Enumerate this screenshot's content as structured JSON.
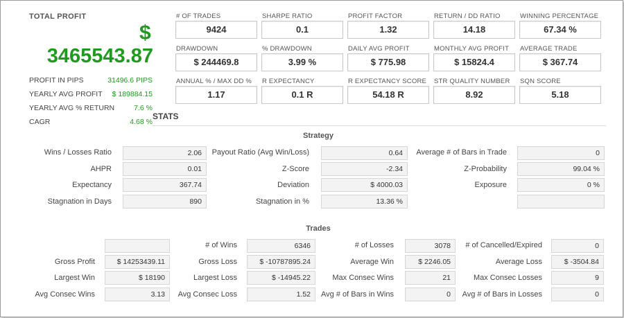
{
  "total_profit": {
    "title": "TOTAL PROFIT",
    "currency": "$",
    "value": "3465543.87",
    "side": [
      {
        "label": "PROFIT IN PIPS",
        "value": "31496.6 PIPS"
      },
      {
        "label": "YEARLY AVG PROFIT",
        "value": "$ 189884.15"
      },
      {
        "label": "YEARLY AVG % RETURN",
        "value": "7.6 %"
      },
      {
        "label": "CAGR",
        "value": "4.68 %"
      }
    ]
  },
  "metrics": [
    {
      "label": "# OF TRADES",
      "value": "9424"
    },
    {
      "label": "SHARPE RATIO",
      "value": "0.1"
    },
    {
      "label": "PROFIT FACTOR",
      "value": "1.32"
    },
    {
      "label": "RETURN / DD RATIO",
      "value": "14.18"
    },
    {
      "label": "WINNING PERCENTAGE",
      "value": "67.34 %"
    },
    {
      "label": "DRAWDOWN",
      "value": "$ 244469.8"
    },
    {
      "label": "% DRAWDOWN",
      "value": "3.99 %"
    },
    {
      "label": "DAILY AVG PROFIT",
      "value": "$ 775.98"
    },
    {
      "label": "MONTHLY AVG PROFIT",
      "value": "$ 15824.4"
    },
    {
      "label": "AVERAGE TRADE",
      "value": "$ 367.74"
    },
    {
      "label": "ANNUAL % / MAX DD %",
      "value": "1.17"
    },
    {
      "label": "R EXPECTANCY",
      "value": "0.1 R"
    },
    {
      "label": "R EXPECTANCY SCORE",
      "value": "54.18 R"
    },
    {
      "label": "STR QUALITY NUMBER",
      "value": "8.92"
    },
    {
      "label": "SQN SCORE",
      "value": "5.18"
    }
  ],
  "stats": {
    "title": "STATS",
    "strategy": {
      "title": "Strategy",
      "rows": [
        [
          {
            "label": "Wins / Losses Ratio",
            "value": "2.06"
          },
          {
            "label": "Payout Ratio (Avg Win/Loss)",
            "value": "0.64"
          },
          {
            "label": "Average # of Bars in Trade",
            "value": "0"
          }
        ],
        [
          {
            "label": "AHPR",
            "value": "0.01"
          },
          {
            "label": "Z-Score",
            "value": "-2.34"
          },
          {
            "label": "Z-Probability",
            "value": "99.04 %"
          }
        ],
        [
          {
            "label": "Expectancy",
            "value": "367.74"
          },
          {
            "label": "Deviation",
            "value": "$ 4000.03"
          },
          {
            "label": "Exposure",
            "value": "0 %"
          }
        ],
        [
          {
            "label": "Stagnation in Days",
            "value": "890"
          },
          {
            "label": "Stagnation in %",
            "value": "13.36 %"
          },
          {
            "label": "",
            "value": ""
          }
        ]
      ]
    },
    "trades": {
      "title": "Trades",
      "rows": [
        [
          {
            "label": "",
            "value": ""
          },
          {
            "label": "# of Wins",
            "value": "6346"
          },
          {
            "label": "# of Losses",
            "value": "3078"
          },
          {
            "label": "# of Cancelled/Expired",
            "value": "0"
          }
        ],
        [
          {
            "label": "Gross Profit",
            "value": "$ 14253439.11"
          },
          {
            "label": "Gross Loss",
            "value": "$ -10787895.24"
          },
          {
            "label": "Average Win",
            "value": "$ 2246.05"
          },
          {
            "label": "Average Loss",
            "value": "$ -3504.84"
          }
        ],
        [
          {
            "label": "Largest Win",
            "value": "$ 18190"
          },
          {
            "label": "Largest Loss",
            "value": "$ -14945.22"
          },
          {
            "label": "Max Consec Wins",
            "value": "21"
          },
          {
            "label": "Max Consec Losses",
            "value": "9"
          }
        ],
        [
          {
            "label": "Avg Consec Wins",
            "value": "3.13"
          },
          {
            "label": "Avg Consec Loss",
            "value": "1.52"
          },
          {
            "label": "Avg # of Bars in Wins",
            "value": "0"
          },
          {
            "label": "Avg # of Bars in Losses",
            "value": "0"
          }
        ]
      ]
    }
  }
}
